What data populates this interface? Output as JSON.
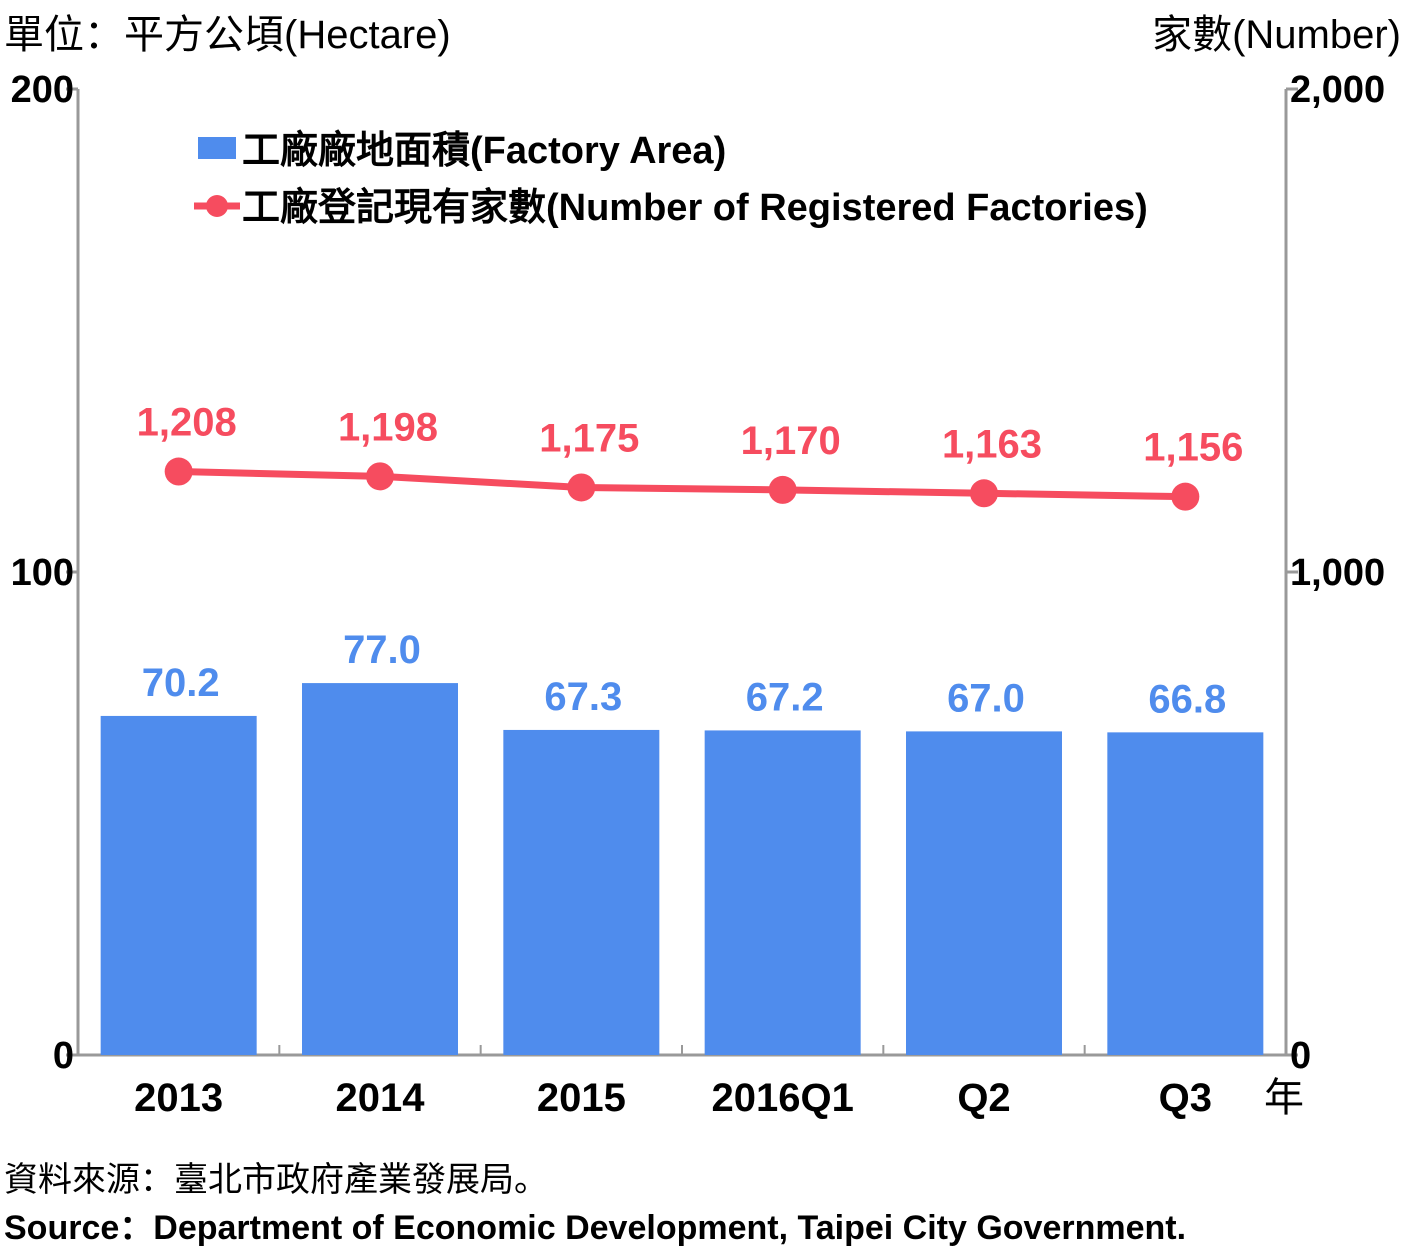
{
  "units": {
    "left": "單位：平方公頃(Hectare)",
    "right": "家數(Number)",
    "x": "年"
  },
  "source": {
    "zh": "資料來源：臺北市政府產業發展局。",
    "en": "Source：Department of Economic Development, Taipei City Government."
  },
  "colors": {
    "bar": "#4f8ced",
    "line": "#f64c5f",
    "axis": "#999999"
  },
  "chart_data": {
    "type": "bar",
    "categories": [
      "2013",
      "2014",
      "2015",
      "2016Q1",
      "Q2",
      "Q3"
    ],
    "series": [
      {
        "name": "工廠廠地面積(Factory Area)",
        "type": "bar",
        "axis": "left",
        "values": [
          70.2,
          77.0,
          67.3,
          67.2,
          67.0,
          66.8
        ],
        "labels": [
          "70.2",
          "77.0",
          "67.3",
          "67.2",
          "67.0",
          "66.8"
        ]
      },
      {
        "name": "工廠登記現有家數(Number of Registered Factories)",
        "type": "line",
        "axis": "right",
        "values": [
          1208,
          1198,
          1175,
          1170,
          1163,
          1156
        ],
        "labels": [
          "1,208",
          "1,198",
          "1,175",
          "1,170",
          "1,163",
          "1,156"
        ]
      }
    ],
    "y_left": {
      "range": [
        0,
        200
      ],
      "ticks": [
        0,
        100,
        200
      ],
      "tick_labels": [
        "0",
        "100",
        "200"
      ]
    },
    "y_right": {
      "range": [
        0,
        2000
      ],
      "ticks": [
        0,
        1000,
        2000
      ],
      "tick_labels": [
        "0",
        "1,000",
        "2,000"
      ]
    },
    "grid": false,
    "legend_position": "top-left"
  }
}
